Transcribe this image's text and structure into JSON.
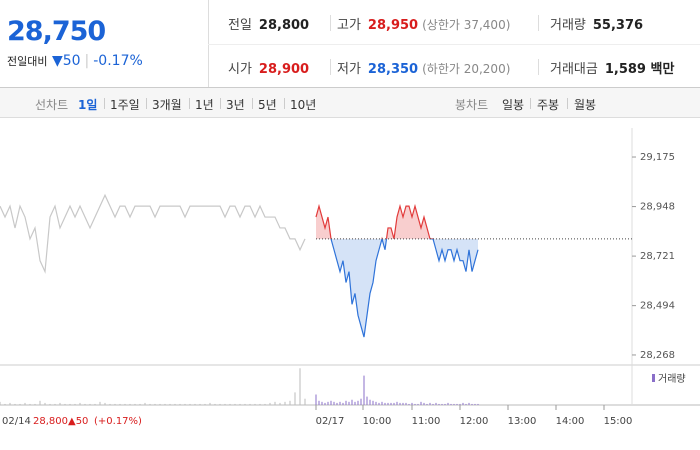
{
  "header": {
    "price": "28,750",
    "change_label": "전일대비",
    "change": "▼50",
    "change_pct": "-0.17%",
    "stats": [
      {
        "label": "전일",
        "value": "28,800",
        "color": "#222222"
      },
      {
        "label": "고가",
        "value": "28,950",
        "extra": "(상한가 37,400)",
        "color": "#d81d1d"
      },
      {
        "label": "거래량",
        "value": "55,376",
        "color": "#222222"
      },
      {
        "label": "시가",
        "value": "28,900",
        "color": "#d81d1d"
      },
      {
        "label": "저가",
        "value": "28,350",
        "extra": "(하한가 20,200)",
        "color": "#1b63d6"
      },
      {
        "label": "거래대금",
        "value": "1,589 백만",
        "color": "#222222"
      }
    ]
  },
  "tabs": {
    "line_label": "선차트",
    "line_items": [
      "1일",
      "1주일",
      "3개월",
      "1년",
      "3년",
      "5년",
      "10년"
    ],
    "selected": "1일",
    "candle_label": "봉차트",
    "candle_items": [
      "일봉",
      "주봉",
      "월봉"
    ]
  },
  "chart_data": {
    "type": "line",
    "ylim": [
      28222,
      29308
    ],
    "yticks": [
      {
        "value": 29175,
        "label": "29,175"
      },
      {
        "value": 28948,
        "label": "28,948"
      },
      {
        "value": 28721,
        "label": "28,721"
      },
      {
        "value": 28494,
        "label": "28,494"
      },
      {
        "value": 28268,
        "label": "28,268"
      }
    ],
    "reference": 28800,
    "x_labels": [
      "02/17",
      "10:00",
      "11:00",
      "12:00",
      "13:00",
      "14:00",
      "15:00"
    ],
    "prev_day": {
      "date": "02/14",
      "close": "28,800",
      "change": "▲50",
      "change_pct": "(+0.17%)"
    },
    "volume_legend": "거래량",
    "series": [
      {
        "color": "#c8c8c8",
        "values": [
          28950,
          28900,
          28950,
          28850,
          28950,
          28900,
          28800,
          28850,
          28700,
          28650,
          28900,
          28950,
          28850,
          28900,
          28950,
          28900,
          28950,
          28900,
          28850,
          28900,
          28950,
          29000,
          28950,
          28900,
          28950,
          28950,
          28900,
          28950,
          28950,
          28950,
          28950,
          28900,
          28950,
          28950,
          28950,
          28950,
          28950,
          28900,
          28950,
          28950,
          28950,
          28950,
          28950,
          28950,
          28950,
          28900,
          28950,
          28950,
          28900,
          28950,
          28950,
          28900,
          28950,
          28900,
          28900,
          28900,
          28850,
          28850,
          28800,
          28800,
          28750,
          28800
        ],
        "volume": [
          3,
          1,
          2,
          1,
          1,
          2,
          1,
          1,
          4,
          2,
          1,
          1,
          2,
          1,
          1,
          1,
          2,
          1,
          1,
          1,
          3,
          2,
          1,
          1,
          1,
          1,
          1,
          1,
          1,
          2,
          1,
          1,
          1,
          1,
          1,
          1,
          1,
          1,
          1,
          1,
          1,
          1,
          2,
          1,
          1,
          1,
          1,
          1,
          1,
          1,
          1,
          1,
          1,
          1,
          2,
          3,
          2,
          3,
          4,
          12,
          35,
          6
        ]
      },
      {
        "color_up": "#e23b3b",
        "color_down": "#2f73d9",
        "values": [
          28900,
          28950,
          28900,
          28850,
          28900,
          28800,
          28750,
          28700,
          28650,
          28700,
          28600,
          28650,
          28500,
          28550,
          28450,
          28400,
          28350,
          28450,
          28550,
          28600,
          28700,
          28750,
          28800,
          28750,
          28850,
          28850,
          28800,
          28900,
          28950,
          28900,
          28950,
          28950,
          28900,
          28950,
          28900,
          28850,
          28900,
          28850,
          28800,
          28800,
          28750,
          28700,
          28750,
          28700,
          28750,
          28750,
          28700,
          28750,
          28700,
          28700,
          28650,
          28750,
          28650,
          28700,
          28750
        ],
        "volume": [
          10,
          4,
          3,
          2,
          3,
          4,
          3,
          2,
          3,
          2,
          4,
          3,
          5,
          3,
          4,
          6,
          28,
          8,
          5,
          4,
          3,
          2,
          3,
          2,
          2,
          2,
          2,
          3,
          2,
          2,
          2,
          1,
          2,
          1,
          1,
          3,
          2,
          1,
          2,
          1,
          2,
          1,
          1,
          1,
          2,
          1,
          1,
          1,
          1,
          2,
          1,
          2,
          1,
          1,
          1
        ]
      }
    ]
  }
}
